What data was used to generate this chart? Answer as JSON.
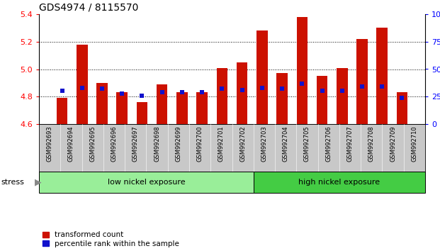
{
  "title": "GDS4974 / 8115570",
  "samples": [
    "GSM992693",
    "GSM992694",
    "GSM992695",
    "GSM992696",
    "GSM992697",
    "GSM992698",
    "GSM992699",
    "GSM992700",
    "GSM992701",
    "GSM992702",
    "GSM992703",
    "GSM992704",
    "GSM992705",
    "GSM992706",
    "GSM992707",
    "GSM992708",
    "GSM992709",
    "GSM992710"
  ],
  "transformed_count": [
    4.79,
    5.18,
    4.9,
    4.83,
    4.76,
    4.89,
    4.83,
    4.83,
    5.01,
    5.05,
    5.28,
    4.97,
    5.38,
    4.95,
    5.01,
    5.22,
    5.3,
    4.83
  ],
  "percentile_rank": [
    30,
    33,
    32,
    28,
    26,
    29,
    29,
    29,
    32,
    31,
    33,
    32,
    37,
    30,
    30,
    34,
    34,
    24
  ],
  "ymin": 4.6,
  "ymax": 5.4,
  "yticks_left": [
    4.6,
    4.8,
    5.0,
    5.2,
    5.4
  ],
  "yticks_right": [
    0,
    25,
    50,
    75,
    100
  ],
  "bar_color": "#cc1100",
  "percentile_color": "#1111cc",
  "low_group_color": "#99ee99",
  "high_group_color": "#44cc44",
  "low_nickel_count": 10,
  "low_nickel_label": "low nickel exposure",
  "high_nickel_label": "high nickel exposure",
  "stress_label": "stress",
  "legend_red_label": "transformed count",
  "legend_blue_label": "percentile rank within the sample",
  "bar_width": 0.55,
  "dotted_lines": [
    4.8,
    5.0,
    5.2
  ],
  "tick_bg_color": "#c8c8c8",
  "title_fontsize": 10,
  "tick_fontsize": 6.0,
  "label_fontsize": 8
}
